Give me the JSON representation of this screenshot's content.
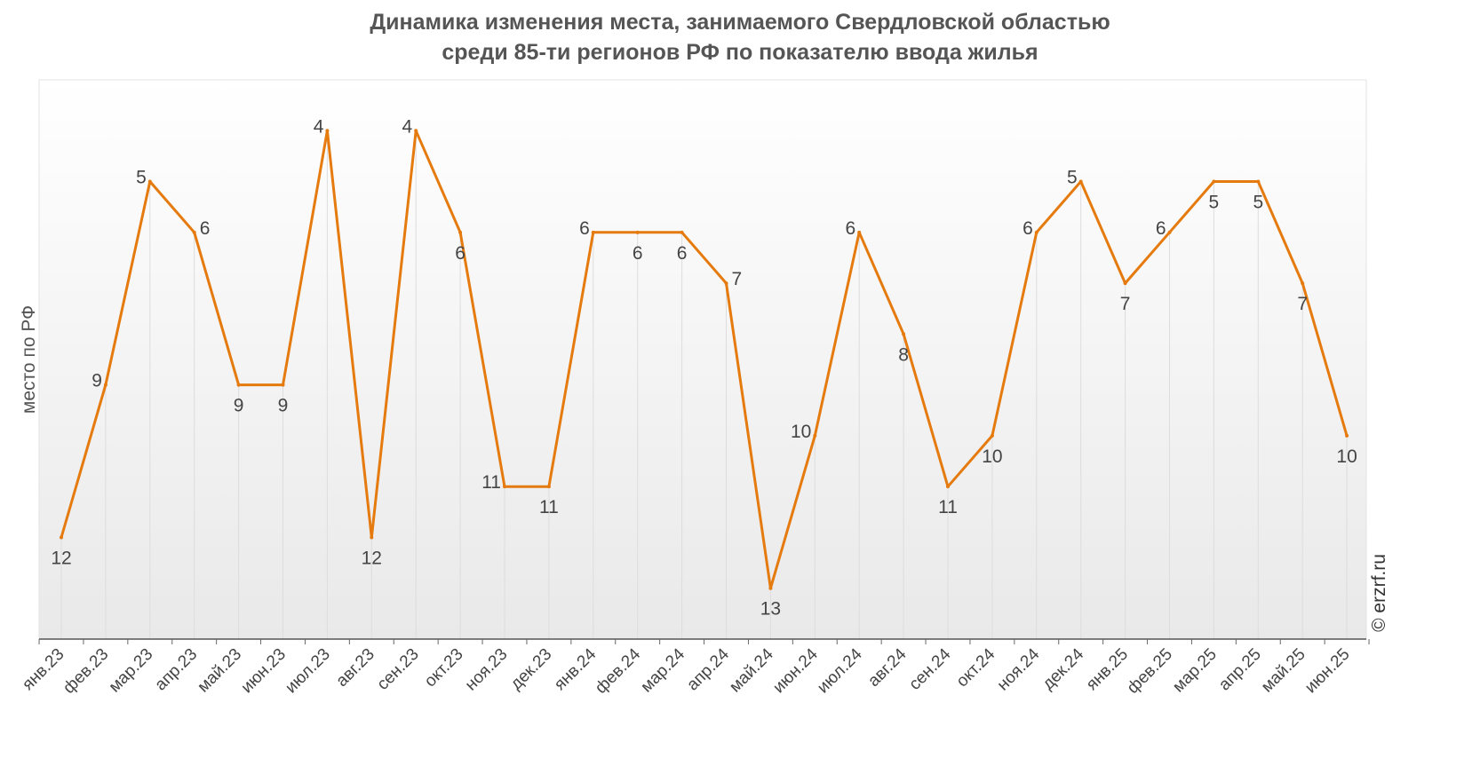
{
  "chart_data": {
    "type": "line",
    "title": "Динамика изменения места, занимаемого Свердловской областью",
    "subtitle": "среди 85-ти регионов РФ по показателю ввода жилья",
    "ylabel": "место по РФ",
    "xlabel": "",
    "y_inverted": true,
    "ylim": [
      3,
      14
    ],
    "grid": "vertical",
    "categories": [
      "янв.23",
      "фев.23",
      "мар.23",
      "апр.23",
      "май.23",
      "июн.23",
      "июл.23",
      "авг.23",
      "сен.23",
      "окт.23",
      "ноя.23",
      "дек.23",
      "янв.24",
      "фев.24",
      "мар.24",
      "апр.24",
      "май.24",
      "июн.24",
      "июл.24",
      "авг.24",
      "сен.24",
      "окт.24",
      "ноя.24",
      "дек.24",
      "янв.25",
      "фев.25",
      "мар.25",
      "апр.25",
      "май.25",
      "июн.25"
    ],
    "series": [
      {
        "values": [
          12,
          9,
          5,
          6,
          9,
          9,
          4,
          12,
          4,
          6,
          11,
          11,
          6,
          6,
          6,
          7,
          13,
          10,
          6,
          8,
          11,
          10,
          6,
          5,
          7,
          6,
          5,
          5,
          7,
          10
        ],
        "color": "#E57A0E"
      }
    ],
    "label_positions": [
      "below",
      "left",
      "left",
      "right",
      "below",
      "below",
      "left",
      "below",
      "left",
      "below",
      "left",
      "below",
      "left",
      "below",
      "below",
      "right",
      "below",
      "left",
      "left",
      "below",
      "below",
      "below",
      "left",
      "left",
      "below",
      "left",
      "below",
      "below",
      "below",
      "below"
    ]
  },
  "credit": "© erzrf.ru",
  "colors": {
    "line": "#E57A0E",
    "grid": "#dddddd",
    "axis": "#555555",
    "text": "#444444"
  }
}
